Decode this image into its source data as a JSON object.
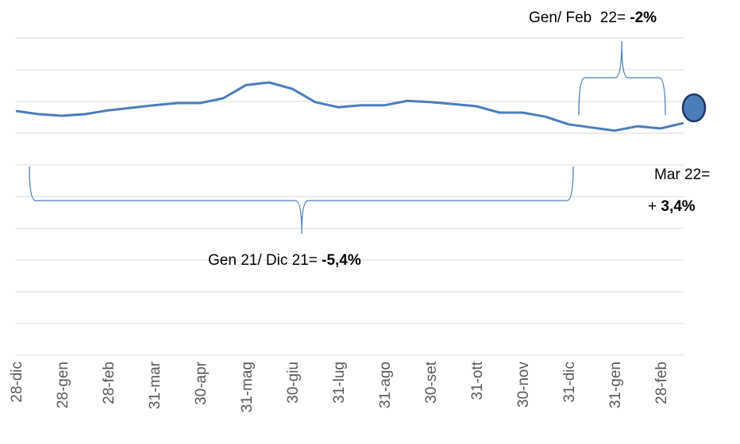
{
  "chart_data": {
    "type": "line",
    "categories": [
      "28-dic",
      null,
      "28-gen",
      null,
      "28-feb",
      null,
      "31-mar",
      null,
      "30-apr",
      null,
      "31-mag",
      null,
      "30-giu",
      null,
      "31-lug",
      null,
      "31-ago",
      null,
      "30-set",
      null,
      "31-ott",
      null,
      "30-nov",
      null,
      "31-dic",
      null,
      "31-gen",
      null,
      "28-feb",
      null
    ],
    "values": [
      7.7,
      7.6,
      7.55,
      7.6,
      7.72,
      7.8,
      7.88,
      7.95,
      7.95,
      8.1,
      8.52,
      8.6,
      8.4,
      7.98,
      7.82,
      7.88,
      7.88,
      8.02,
      7.98,
      7.92,
      7.85,
      7.65,
      7.65,
      7.52,
      7.28,
      7.18,
      7.08,
      7.22,
      7.15,
      7.32
    ],
    "color": "#4a7ebb",
    "ylim": [
      0,
      10
    ],
    "yticks": [
      0,
      1,
      2,
      3,
      4,
      5,
      6,
      7,
      8,
      9,
      10
    ],
    "grid": true,
    "annotations": [
      {
        "text": "Gen/ Feb  22= ",
        "bold": "-2%"
      },
      {
        "text": "Mar 22="
      },
      {
        "text": "+ ",
        "bold": "3,4%"
      },
      {
        "text": "Gen 21/ Dic 21= ",
        "bold": "-5,4%"
      }
    ]
  }
}
